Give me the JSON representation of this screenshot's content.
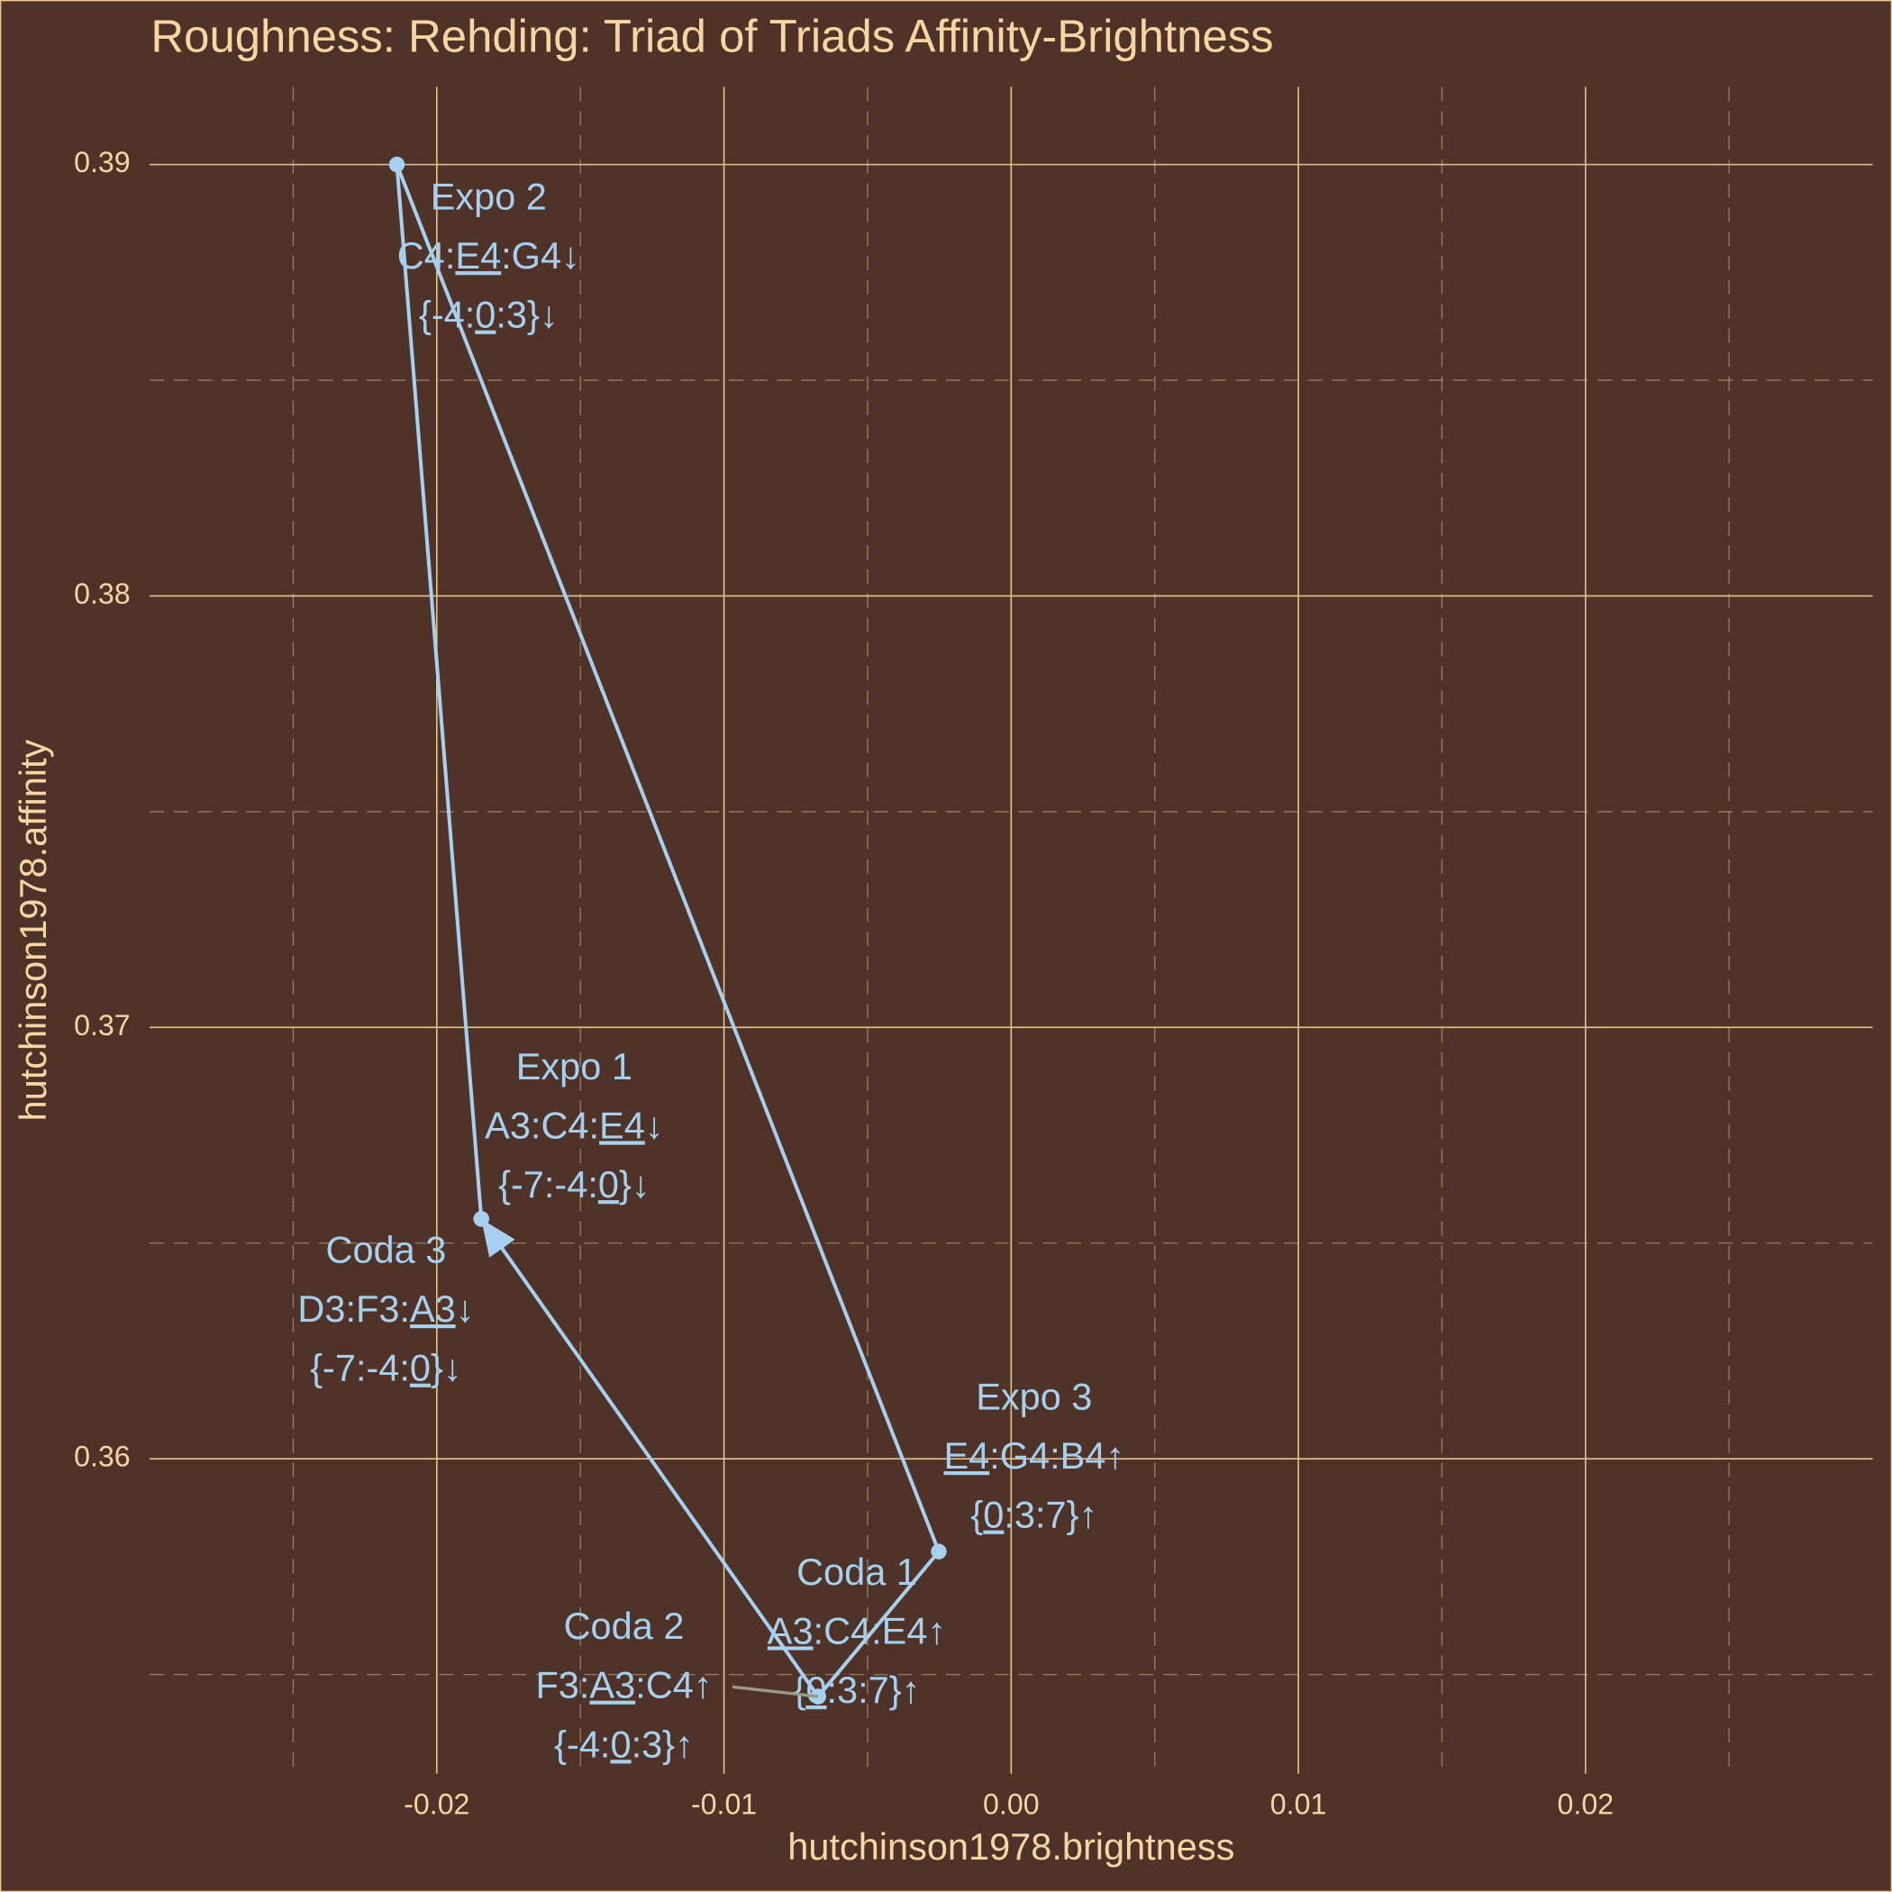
{
  "chart_data": {
    "type": "scatter",
    "title": "Roughness: Rehding: Triad of Triads Affinity-Brightness",
    "x_label": "hutchinson1978.brightness",
    "y_label": "hutchinson1978.affinity",
    "xlim": [
      -0.03,
      0.03
    ],
    "ylim": [
      0.3527,
      0.3918
    ],
    "xticks": [
      -0.02,
      -0.01,
      {
        "value": 0,
        "label": "0.00"
      },
      0.01,
      0.02
    ],
    "yticks": [
      0.36,
      0.37,
      0.38,
      0.39
    ],
    "x_minor_grid": [
      -0.025,
      -0.015,
      -0.005,
      0.005,
      0.015,
      0.025
    ],
    "y_minor_grid": [
      0.355,
      0.365,
      0.375,
      0.385
    ],
    "grid": true,
    "color": "#a6d0ee",
    "arrow": true,
    "x": [
      -0.01845,
      -0.02139,
      -0.00252,
      -0.00672,
      -0.00672,
      -0.01845
    ],
    "y": [
      0.36556,
      0.39,
      0.35785,
      0.35449,
      0.35449,
      0.36556
    ],
    "labels": [
      [
        [
          {
            "text": "Expo 1"
          }
        ],
        [
          {
            "text": "A3:C4:"
          },
          {
            "text": "E4",
            "underline": true
          },
          {
            "text": "↓"
          }
        ],
        [
          {
            "text": "{-7:-4:"
          },
          {
            "text": "0",
            "underline": true
          },
          {
            "text": "}↓"
          }
        ]
      ],
      [
        [
          {
            "text": "Expo 2"
          }
        ],
        [
          {
            "text": "C4:"
          },
          {
            "text": "E4",
            "underline": true
          },
          {
            "text": ":G4↓"
          }
        ],
        [
          {
            "text": "{-4:"
          },
          {
            "text": "0",
            "underline": true
          },
          {
            "text": ":3}↓"
          }
        ]
      ],
      [
        [
          {
            "text": "Expo 3"
          }
        ],
        [
          {
            "text": "E4",
            "underline": true
          },
          {
            "text": ":G4:B4↑"
          }
        ],
        [
          {
            "text": "{"
          },
          {
            "text": "0",
            "underline": true
          },
          {
            "text": ":3:7}↑"
          }
        ]
      ],
      [
        [
          {
            "text": "Coda 1"
          }
        ],
        [
          {
            "text": "A3",
            "underline": true
          },
          {
            "text": ":C4:E4↑"
          }
        ],
        [
          {
            "text": "{"
          },
          {
            "text": "0",
            "underline": true
          },
          {
            "text": ":3:7}↑"
          }
        ]
      ],
      [
        [
          {
            "text": "Coda 2"
          }
        ],
        [
          {
            "text": "F3:"
          },
          {
            "text": "A3",
            "underline": true
          },
          {
            "text": ":C4↑"
          }
        ],
        [
          {
            "text": "{-4:"
          },
          {
            "text": "0",
            "underline": true
          },
          {
            "text": ":3}↑"
          }
        ]
      ],
      [
        [
          {
            "text": "Coda 3"
          }
        ],
        [
          {
            "text": "D3:F3:"
          },
          {
            "text": "A3",
            "underline": true
          },
          {
            "text": "↓"
          }
        ],
        [
          {
            "text": "{-7:-4:"
          },
          {
            "text": "0",
            "underline": true
          },
          {
            "text": "}↓"
          }
        ]
      ]
    ]
  }
}
